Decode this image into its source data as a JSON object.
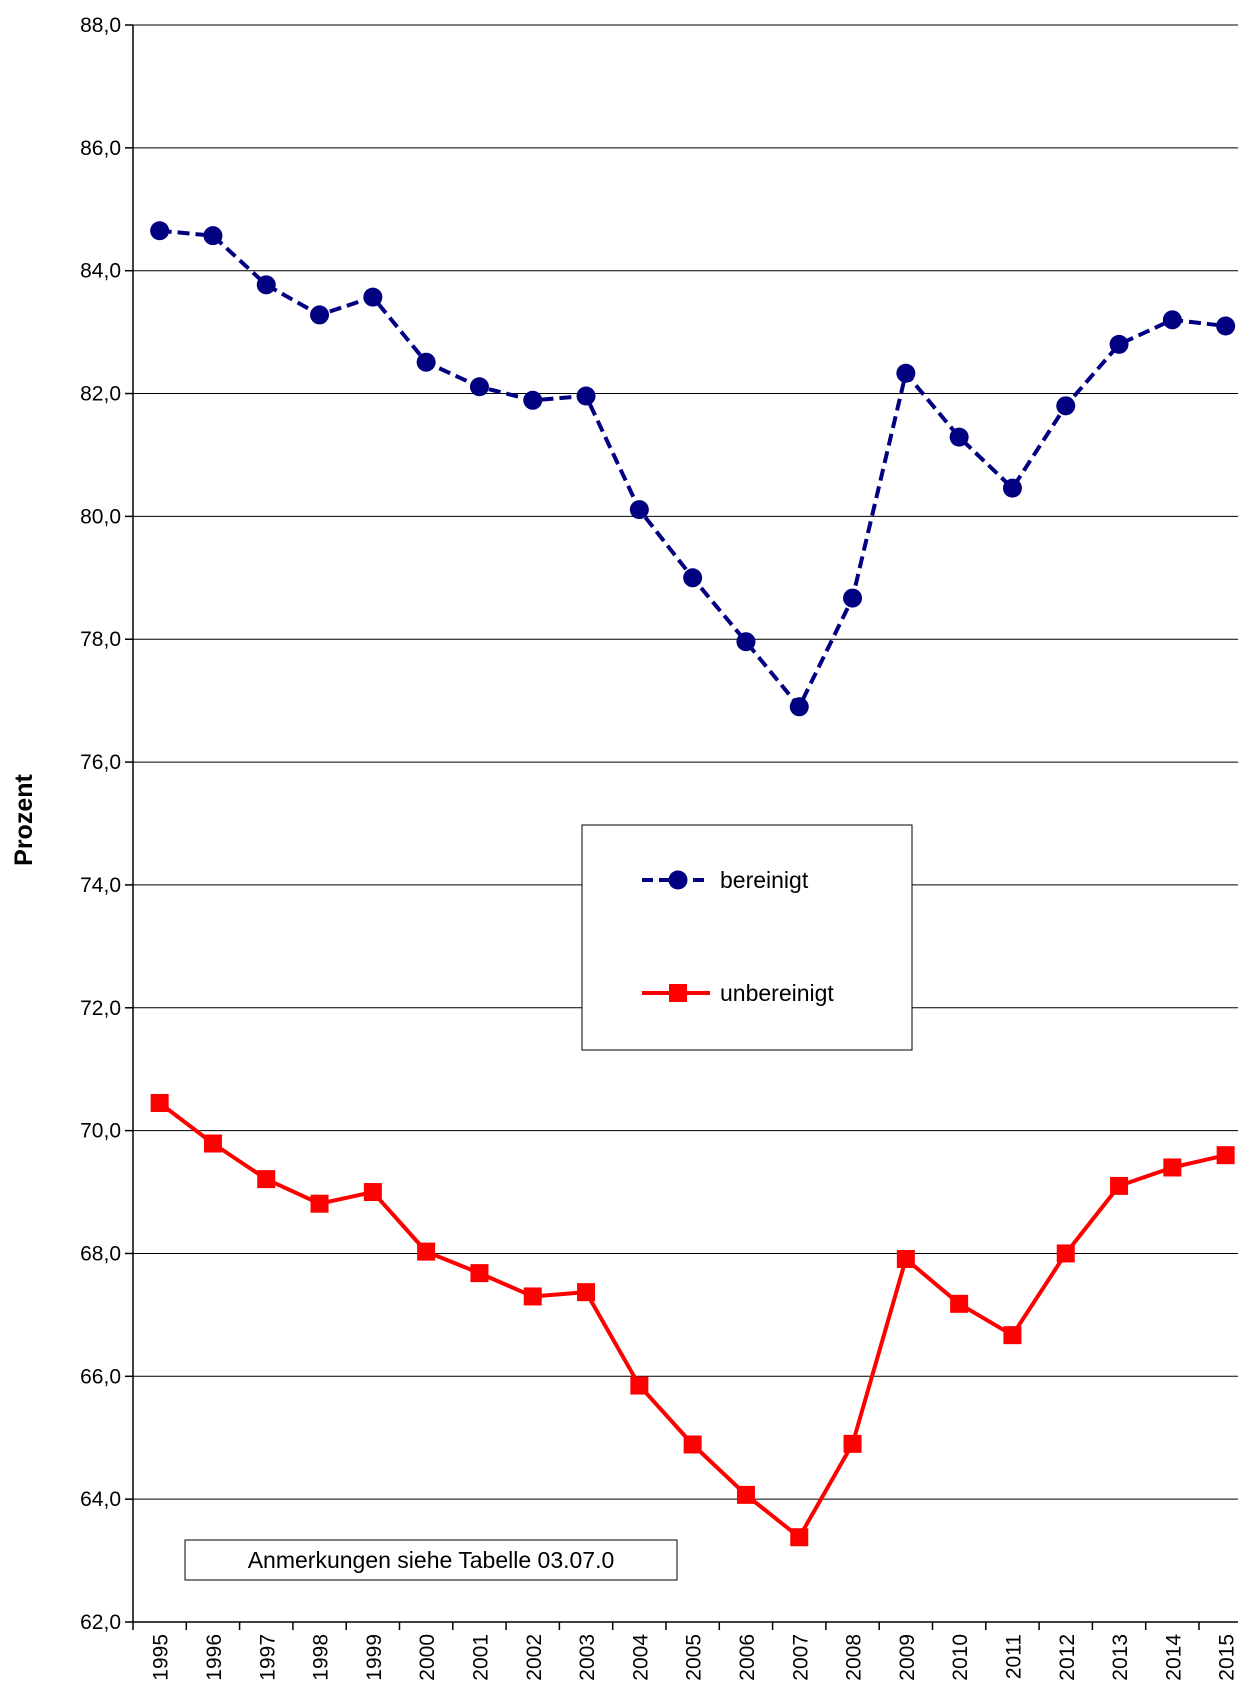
{
  "chart_data": {
    "type": "line",
    "title": "",
    "xlabel": "",
    "ylabel": "Prozent",
    "ylim": [
      62,
      88
    ],
    "ytick_step": 2,
    "ytick_labels": [
      "62,0",
      "64,0",
      "66,0",
      "68,0",
      "70,0",
      "72,0",
      "74,0",
      "76,0",
      "78,0",
      "80,0",
      "82,0",
      "84,0",
      "86,0",
      "88,0"
    ],
    "grid": "horizontal",
    "legend_position": "center",
    "categories": [
      "1995",
      "1996",
      "1997",
      "1998",
      "1999",
      "2000",
      "2001",
      "2002",
      "2003",
      "2004",
      "2005",
      "2006",
      "2007",
      "2008",
      "2009",
      "2010",
      "2011",
      "2012",
      "2013",
      "2014",
      "2015"
    ],
    "series": [
      {
        "name": "bereinigt",
        "color": "#000080",
        "line_style": "dashed",
        "marker": "circle",
        "values": [
          84.65,
          84.57,
          83.77,
          83.28,
          83.57,
          82.51,
          82.11,
          81.89,
          81.96,
          80.11,
          79.0,
          77.96,
          76.9,
          78.67,
          82.33,
          81.29,
          80.46,
          81.8,
          82.8,
          83.2,
          83.1
        ]
      },
      {
        "name": "unbereinigt",
        "color": "#ff0000",
        "line_style": "solid",
        "marker": "square",
        "values": [
          70.45,
          69.79,
          69.21,
          68.81,
          69.0,
          68.03,
          67.68,
          67.3,
          67.37,
          65.85,
          64.89,
          64.07,
          63.38,
          64.9,
          67.91,
          67.18,
          66.67,
          68.0,
          69.1,
          69.4,
          69.6
        ]
      }
    ],
    "annotation": "Anmerkungen siehe Tabelle 03.07.0"
  }
}
